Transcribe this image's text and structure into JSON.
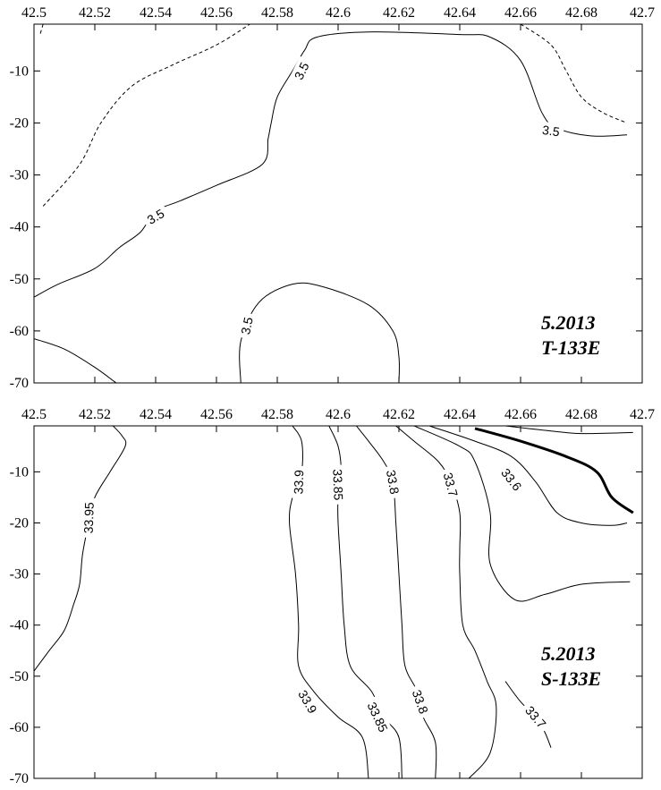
{
  "chart_data": [
    {
      "type": "contour",
      "title": "",
      "xlabel": "",
      "ylabel": "",
      "xlim": [
        42.5,
        42.7
      ],
      "ylim": [
        -70,
        -1
      ],
      "x_ticks": [
        "42.5",
        "42.52",
        "42.54",
        "42.56",
        "42.58",
        "42.6",
        "42.62",
        "42.64",
        "42.66",
        "42.68",
        "42.7"
      ],
      "y_ticks": [
        "-10",
        "-20",
        "-30",
        "-40",
        "-50",
        "-60",
        "-70"
      ],
      "annotation": [
        "5.2013",
        "T-133E"
      ],
      "contours": [
        {
          "level": "3.5",
          "style": "solid",
          "points": [
            [
              42.5,
              -53.5
            ],
            [
              42.508,
              -51
            ],
            [
              42.52,
              -48
            ],
            [
              42.528,
              -44
            ],
            [
              42.535,
              -41
            ],
            [
              42.54,
              -37
            ],
            [
              42.548,
              -35
            ],
            [
              42.56,
              -32
            ],
            [
              42.575,
              -28
            ],
            [
              42.577,
              -23
            ],
            [
              42.578,
              -20
            ],
            [
              42.58,
              -15
            ],
            [
              42.585,
              -10
            ],
            [
              42.589,
              -6
            ],
            [
              42.593,
              -3.5
            ],
            [
              42.61,
              -2.5
            ],
            [
              42.64,
              -3
            ],
            [
              42.65,
              -3.5
            ],
            [
              42.66,
              -8
            ],
            [
              42.667,
              -18
            ],
            [
              42.672,
              -21
            ],
            [
              42.683,
              -22.5
            ],
            [
              42.695,
              -22.3
            ]
          ]
        },
        {
          "level": "3.5",
          "style": "solid",
          "points": [
            [
              42.568,
              -70
            ],
            [
              42.568,
              -62
            ],
            [
              42.574,
              -54.5
            ],
            [
              42.585,
              -51
            ],
            [
              42.595,
              -51.5
            ],
            [
              42.61,
              -55
            ],
            [
              42.618,
              -60
            ],
            [
              42.62,
              -65
            ],
            [
              42.62,
              -70
            ]
          ]
        },
        {
          "level": "",
          "style": "solid",
          "points": [
            [
              42.5,
              -61.5
            ],
            [
              42.51,
              -63.5
            ],
            [
              42.52,
              -67
            ],
            [
              42.527,
              -70
            ]
          ]
        },
        {
          "level": "",
          "style": "dashed",
          "points": [
            [
              42.503,
              -1
            ],
            [
              42.502,
              -3
            ]
          ]
        },
        {
          "level": "",
          "style": "dashed",
          "points": [
            [
              42.503,
              -36
            ],
            [
              42.515,
              -28
            ],
            [
              42.522,
              -20
            ],
            [
              42.532,
              -13
            ],
            [
              42.545,
              -9
            ],
            [
              42.56,
              -5
            ],
            [
              42.571,
              -1
            ]
          ]
        },
        {
          "level": "",
          "style": "dashed",
          "points": [
            [
              42.66,
              -1
            ],
            [
              42.67,
              -5
            ],
            [
              42.675,
              -10
            ],
            [
              42.68,
              -15
            ],
            [
              42.687,
              -18
            ],
            [
              42.695,
              -20
            ]
          ]
        }
      ],
      "contour_labels": [
        {
          "text": "3.5",
          "x": 42.588,
          "y": -10,
          "angle": -64
        },
        {
          "text": "3.5",
          "x": 42.54,
          "y": -38,
          "angle": -30
        },
        {
          "text": "3.5",
          "x": 42.67,
          "y": -21.5,
          "angle": 8
        },
        {
          "text": "3.5",
          "x": 42.57,
          "y": -59,
          "angle": -78
        }
      ]
    },
    {
      "type": "contour",
      "title": "",
      "xlabel": "",
      "ylabel": "",
      "xlim": [
        42.5,
        42.7
      ],
      "ylim": [
        -70,
        -1
      ],
      "x_ticks": [
        "42.5",
        "42.52",
        "42.54",
        "42.56",
        "42.58",
        "42.6",
        "42.62",
        "42.64",
        "42.66",
        "42.68",
        "42.7"
      ],
      "y_ticks": [
        "-10",
        "-20",
        "-30",
        "-40",
        "-50",
        "-60",
        "-70"
      ],
      "annotation": [
        "5.2013",
        "S-133E"
      ],
      "contours": [
        {
          "level": "33.95",
          "style": "solid",
          "points": [
            [
              42.526,
              -1
            ],
            [
              42.529,
              -3
            ],
            [
              42.53,
              -5
            ],
            [
              42.525,
              -10
            ],
            [
              42.52,
              -15
            ],
            [
              42.518,
              -20
            ],
            [
              42.516,
              -26
            ],
            [
              42.515,
              -32
            ],
            [
              42.513,
              -36
            ],
            [
              42.51,
              -41
            ],
            [
              42.505,
              -45
            ],
            [
              42.5,
              -49
            ]
          ]
        },
        {
          "level": "33.9",
          "style": "solid",
          "points": [
            [
              42.585,
              -1
            ],
            [
              42.588,
              -4
            ],
            [
              42.588,
              -10
            ],
            [
              42.585,
              -15
            ],
            [
              42.584,
              -20
            ],
            [
              42.586,
              -30
            ],
            [
              42.587,
              -40
            ],
            [
              42.587,
              -48
            ],
            [
              42.592,
              -53
            ],
            [
              42.6,
              -58
            ],
            [
              42.608,
              -62
            ],
            [
              42.61,
              -70
            ]
          ]
        },
        {
          "level": "33.85",
          "style": "solid",
          "points": [
            [
              42.597,
              -1
            ],
            [
              42.6,
              -5
            ],
            [
              42.601,
              -10
            ],
            [
              42.6,
              -15
            ],
            [
              42.6,
              -20
            ],
            [
              42.601,
              -30
            ],
            [
              42.602,
              -40
            ],
            [
              42.604,
              -48
            ],
            [
              42.611,
              -53
            ],
            [
              42.615,
              -58
            ],
            [
              42.62,
              -62
            ],
            [
              42.621,
              -70
            ]
          ]
        },
        {
          "level": "33.8",
          "style": "solid",
          "points": [
            [
              42.606,
              -1
            ],
            [
              42.61,
              -4
            ],
            [
              42.615,
              -8
            ],
            [
              42.618,
              -12
            ],
            [
              42.619,
              -20
            ],
            [
              42.62,
              -30
            ],
            [
              42.621,
              -40
            ],
            [
              42.622,
              -48
            ],
            [
              42.626,
              -53
            ],
            [
              42.628,
              -58
            ],
            [
              42.632,
              -63
            ],
            [
              42.632,
              -70
            ]
          ]
        },
        {
          "level": "33.7",
          "style": "solid",
          "points": [
            [
              42.619,
              -1
            ],
            [
              42.625,
              -4
            ],
            [
              42.633,
              -8
            ],
            [
              42.637,
              -12
            ],
            [
              42.64,
              -18
            ],
            [
              42.64,
              -25
            ],
            [
              42.64,
              -30
            ],
            [
              42.641,
              -40
            ],
            [
              42.645,
              -45
            ],
            [
              42.649,
              -51
            ],
            [
              42.652,
              -56
            ],
            [
              42.65,
              -65
            ],
            [
              42.643,
              -70
            ]
          ]
        },
        {
          "level": "",
          "style": "solid",
          "points": [
            [
              42.625,
              -1
            ],
            [
              42.64,
              -5
            ],
            [
              42.645,
              -8
            ],
            [
              42.65,
              -18
            ],
            [
              42.65,
              -28
            ],
            [
              42.658,
              -35
            ],
            [
              42.668,
              -34
            ],
            [
              42.68,
              -32
            ],
            [
              42.696,
              -31.5
            ]
          ]
        },
        {
          "level": "33.7",
          "style": "solid",
          "points": [
            [
              42.655,
              -51
            ],
            [
              42.66,
              -55
            ],
            [
              42.665,
              -58
            ],
            [
              42.668,
              -61
            ],
            [
              42.67,
              -64
            ]
          ]
        },
        {
          "level": "33.6",
          "style": "solid",
          "points": [
            [
              42.63,
              -1
            ],
            [
              42.645,
              -4
            ],
            [
              42.657,
              -7
            ],
            [
              42.665,
              -12
            ],
            [
              42.672,
              -18
            ],
            [
              42.68,
              -20
            ],
            [
              42.69,
              -20.5
            ],
            [
              42.695,
              -20
            ]
          ]
        },
        {
          "level": "",
          "style": "bold",
          "points": [
            [
              42.645,
              -1.5
            ],
            [
              42.66,
              -4
            ],
            [
              42.675,
              -7
            ],
            [
              42.685,
              -10
            ],
            [
              42.69,
              -15
            ],
            [
              42.697,
              -18
            ]
          ]
        },
        {
          "level": "",
          "style": "solid",
          "points": [
            [
              42.655,
              -1
            ],
            [
              42.67,
              -2
            ],
            [
              42.68,
              -2.5
            ],
            [
              42.697,
              -2.3
            ]
          ]
        }
      ],
      "contour_labels": [
        {
          "text": "33.95",
          "x": 42.518,
          "y": -19,
          "angle": -88
        },
        {
          "text": "33.9",
          "x": 42.587,
          "y": -12,
          "angle": -88
        },
        {
          "text": "33.85",
          "x": 42.6,
          "y": -12.5,
          "angle": 88
        },
        {
          "text": "33.8",
          "x": 42.618,
          "y": -12,
          "angle": 80
        },
        {
          "text": "33.7",
          "x": 42.637,
          "y": -12.5,
          "angle": 75
        },
        {
          "text": "33.6",
          "x": 42.657,
          "y": -11.5,
          "angle": 52
        },
        {
          "text": "33.9",
          "x": 42.59,
          "y": -55,
          "angle": 60
        },
        {
          "text": "33.85",
          "x": 42.613,
          "y": -58,
          "angle": 65
        },
        {
          "text": "33.8",
          "x": 42.627,
          "y": -55,
          "angle": 70
        },
        {
          "text": "33.7",
          "x": 42.665,
          "y": -58,
          "angle": 50
        }
      ]
    }
  ]
}
